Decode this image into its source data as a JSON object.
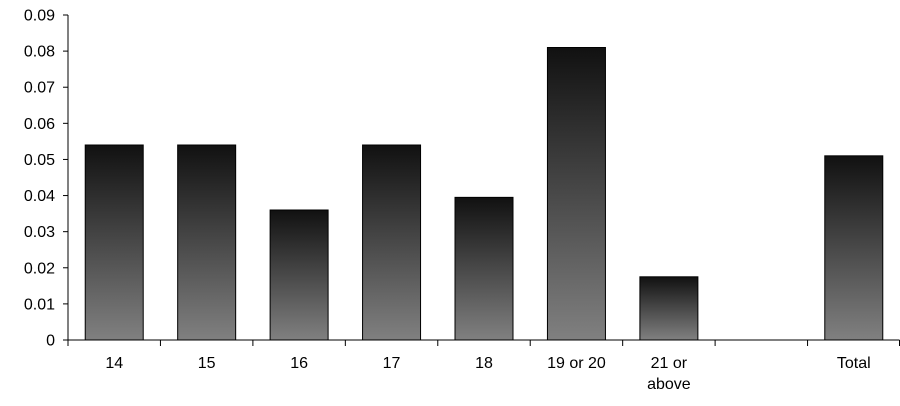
{
  "chart_data": {
    "type": "bar",
    "categories": [
      "14",
      "15",
      "16",
      "17",
      "18",
      "19 or 20",
      "21 or above",
      "",
      "Total"
    ],
    "category_label_lines": [
      [
        "14"
      ],
      [
        "15"
      ],
      [
        "16"
      ],
      [
        "17"
      ],
      [
        "18"
      ],
      [
        "19 or 20"
      ],
      [
        "21 or",
        "above"
      ],
      [],
      [
        "Total"
      ]
    ],
    "values": [
      0.054,
      0.054,
      0.036,
      0.054,
      0.0395,
      0.081,
      0.0175,
      null,
      0.051
    ],
    "y_ticks": [
      "0",
      "0.01",
      "0.02",
      "0.03",
      "0.04",
      "0.05",
      "0.06",
      "0.07",
      "0.08",
      "0.09"
    ],
    "ylim": [
      0,
      0.09
    ],
    "title": "",
    "xlabel": "",
    "ylabel": "",
    "grid": false,
    "legend": "none",
    "colors": {
      "bar_top": "#111111",
      "bar_bottom": "#808080",
      "bar_outline": "#000000",
      "axis": "#000000"
    }
  }
}
